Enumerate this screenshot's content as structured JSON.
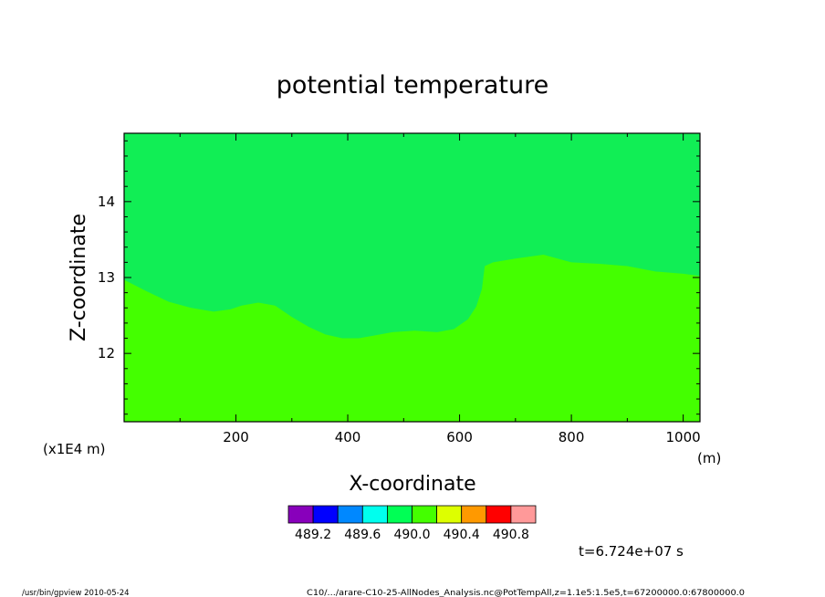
{
  "chart_data": {
    "type": "heatmap",
    "title": "potential temperature",
    "xlabel": "X-coordinate",
    "ylabel": "Z-coordinate",
    "x_units": "(m)",
    "y_scale_note": "(x1E4 m)",
    "xlim": [
      0,
      1030
    ],
    "ylim": [
      11.1,
      14.9
    ],
    "x_ticks": [
      200,
      400,
      600,
      800,
      1000
    ],
    "y_ticks": [
      12,
      13,
      14
    ],
    "x_tick_labels": [
      "200",
      "400",
      "600",
      "800",
      "1000"
    ],
    "y_tick_labels": [
      "12",
      "13",
      "14"
    ],
    "colorbar": {
      "colors": [
        "#8800bb",
        "#0000ff",
        "#0088ff",
        "#00ffee",
        "#00ff55",
        "#44ff00",
        "#ddff00",
        "#ff9900",
        "#ff0000",
        "#ff9999"
      ],
      "labels": [
        "489.2",
        "489.6",
        "490.0",
        "490.4",
        "490.8"
      ]
    },
    "regions": [
      {
        "name": "upper",
        "color": "#11ee55"
      },
      {
        "name": "lower",
        "color": "#44ff00"
      }
    ],
    "boundary": {
      "x": [
        0,
        40,
        80,
        120,
        160,
        190,
        210,
        240,
        270,
        300,
        330,
        360,
        390,
        420,
        450,
        480,
        520,
        560,
        590,
        615,
        630,
        640,
        645,
        660,
        700,
        750,
        800,
        850,
        900,
        950,
        1000,
        1030
      ],
      "z": [
        12.97,
        12.82,
        12.68,
        12.6,
        12.55,
        12.58,
        12.63,
        12.67,
        12.63,
        12.48,
        12.35,
        12.25,
        12.2,
        12.2,
        12.24,
        12.28,
        12.3,
        12.28,
        12.32,
        12.45,
        12.62,
        12.85,
        13.15,
        13.2,
        13.25,
        13.3,
        13.2,
        13.18,
        13.15,
        13.08,
        13.05,
        13.02
      ]
    },
    "time_label": "t=6.724e+07 s",
    "footer_left": "/usr/bin/gpview  2010-05-24",
    "footer_right": "C10/.../arare-C10-25-AllNodes_Analysis.nc@PotTempAll,z=1.1e5:1.5e5,t=67200000.0:67800000.0"
  }
}
